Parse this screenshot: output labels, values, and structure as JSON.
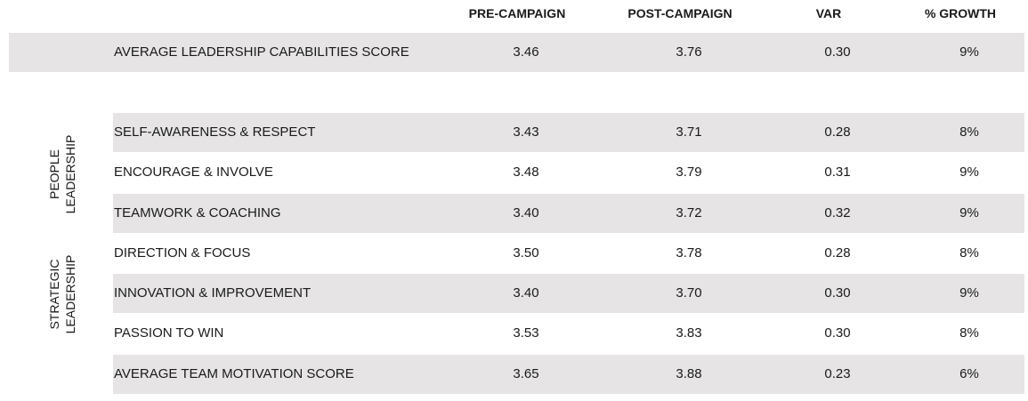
{
  "chart_data": {
    "type": "table",
    "columns": [
      "",
      "PRE-CAMPAIGN",
      "POST-CAMPAIGN",
      "VAR",
      "% GROWTH"
    ],
    "summary_row": {
      "metric": "AVERAGE LEADERSHIP CAPABILITIES SCORE",
      "pre": "3.46",
      "post": "3.76",
      "var": "0.30",
      "growth": "9%"
    },
    "groups": [
      {
        "label_line1": "PEOPLE",
        "label_line2": "LEADERSHIP"
      },
      {
        "label_line1": "STRATEGIC",
        "label_line2": "LEADERSHIP"
      }
    ],
    "rows": [
      {
        "metric": "SELF-AWARENESS & RESPECT",
        "pre": "3.43",
        "post": "3.71",
        "var": "0.28",
        "growth": "8%"
      },
      {
        "metric": "ENCOURAGE & INVOLVE",
        "pre": "3.48",
        "post": "3.79",
        "var": "0.31",
        "growth": "9%"
      },
      {
        "metric": "TEAMWORK & COACHING",
        "pre": "3.40",
        "post": "3.72",
        "var": "0.32",
        "growth": "9%"
      },
      {
        "metric": "DIRECTION & FOCUS",
        "pre": "3.50",
        "post": "3.78",
        "var": "0.28",
        "growth": "8%"
      },
      {
        "metric": "INNOVATION & IMPROVEMENT",
        "pre": "3.40",
        "post": "3.70",
        "var": "0.30",
        "growth": "9%"
      },
      {
        "metric": "PASSION TO WIN",
        "pre": "3.53",
        "post": "3.83",
        "var": "0.30",
        "growth": "8%"
      },
      {
        "metric": "AVERAGE TEAM MOTIVATION SCORE",
        "pre": "3.65",
        "post": "3.88",
        "var": "0.23",
        "growth": "6%"
      }
    ],
    "colors": {
      "shaded_row": "#e6e4e5",
      "text": "#1a1a1a"
    }
  }
}
